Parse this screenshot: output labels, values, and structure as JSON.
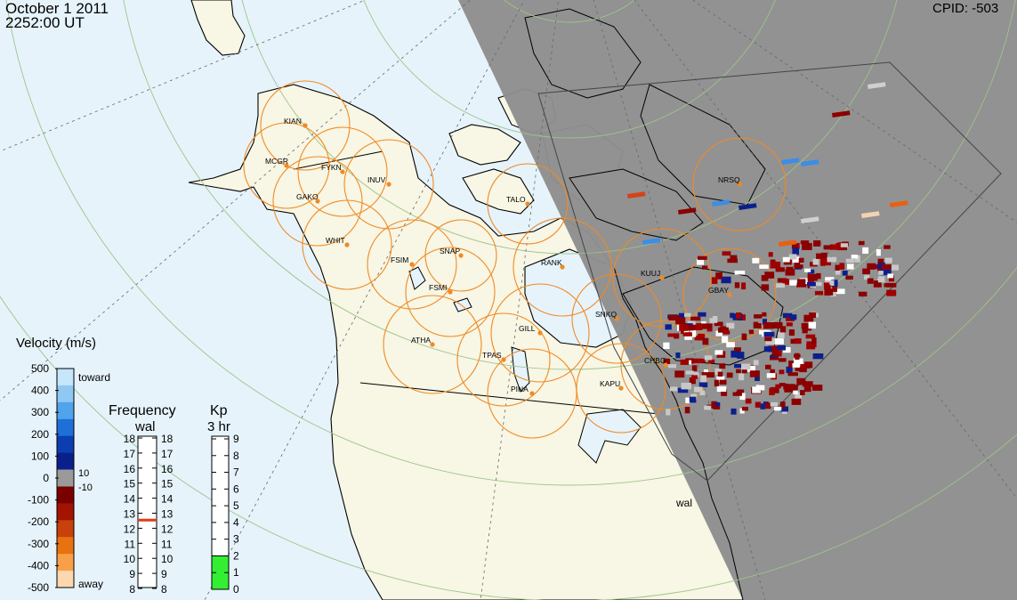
{
  "header": {
    "date": "October  1 2011",
    "time": "2252:00 UT",
    "cpid": "CPID:  -503"
  },
  "radar_label": "wal",
  "stations": [
    {
      "code": "KIAN"
    },
    {
      "code": "MCGR"
    },
    {
      "code": "FYKN"
    },
    {
      "code": "INUV"
    },
    {
      "code": "GAKO"
    },
    {
      "code": "WHIT"
    },
    {
      "code": "FSIM"
    },
    {
      "code": "SNAP"
    },
    {
      "code": "FSMI"
    },
    {
      "code": "TALO"
    },
    {
      "code": "RANK"
    },
    {
      "code": "NRSQ"
    },
    {
      "code": "KUUJ"
    },
    {
      "code": "GBAY"
    },
    {
      "code": "SNKQ"
    },
    {
      "code": "ATHA"
    },
    {
      "code": "GILL"
    },
    {
      "code": "TPAS"
    },
    {
      "code": "PINA"
    },
    {
      "code": "KAPU"
    },
    {
      "code": "CHBG"
    }
  ],
  "velocity_legend": {
    "title": "Velocity (m/s)",
    "ticks": [
      "500",
      "400",
      "300",
      "200",
      "100",
      "0",
      "-100",
      "-200",
      "-300",
      "-400",
      "-500"
    ],
    "toward_label": "toward",
    "away_label": "away",
    "threshold_pos": "10",
    "threshold_neg": "-10"
  },
  "frequency_legend": {
    "title": "Frequency",
    "subtitle": "wal",
    "ticks": [
      "18",
      "17",
      "16",
      "15",
      "14",
      "13",
      "12",
      "11",
      "10",
      "9",
      "8"
    ],
    "current_mhz": 12.6
  },
  "kp_legend": {
    "title": "Kp",
    "subtitle": "3 hr",
    "ticks": [
      "9",
      "8",
      "7",
      "6",
      "5",
      "4",
      "3",
      "2",
      "1",
      "0"
    ],
    "value": 2
  },
  "colors": {
    "ocean": "#e6f3fb",
    "land": "#f8f6e4",
    "night": "#8e8e8e",
    "night_land": "#9b9b9b",
    "fov_ring": "#f08a24",
    "station_dot": "#f08a24",
    "kp_fill": "#33ee33",
    "away_dark": "#8b0000",
    "toward_dark": "#0b1f8c",
    "ground_scatter": "#c8c8c8"
  }
}
